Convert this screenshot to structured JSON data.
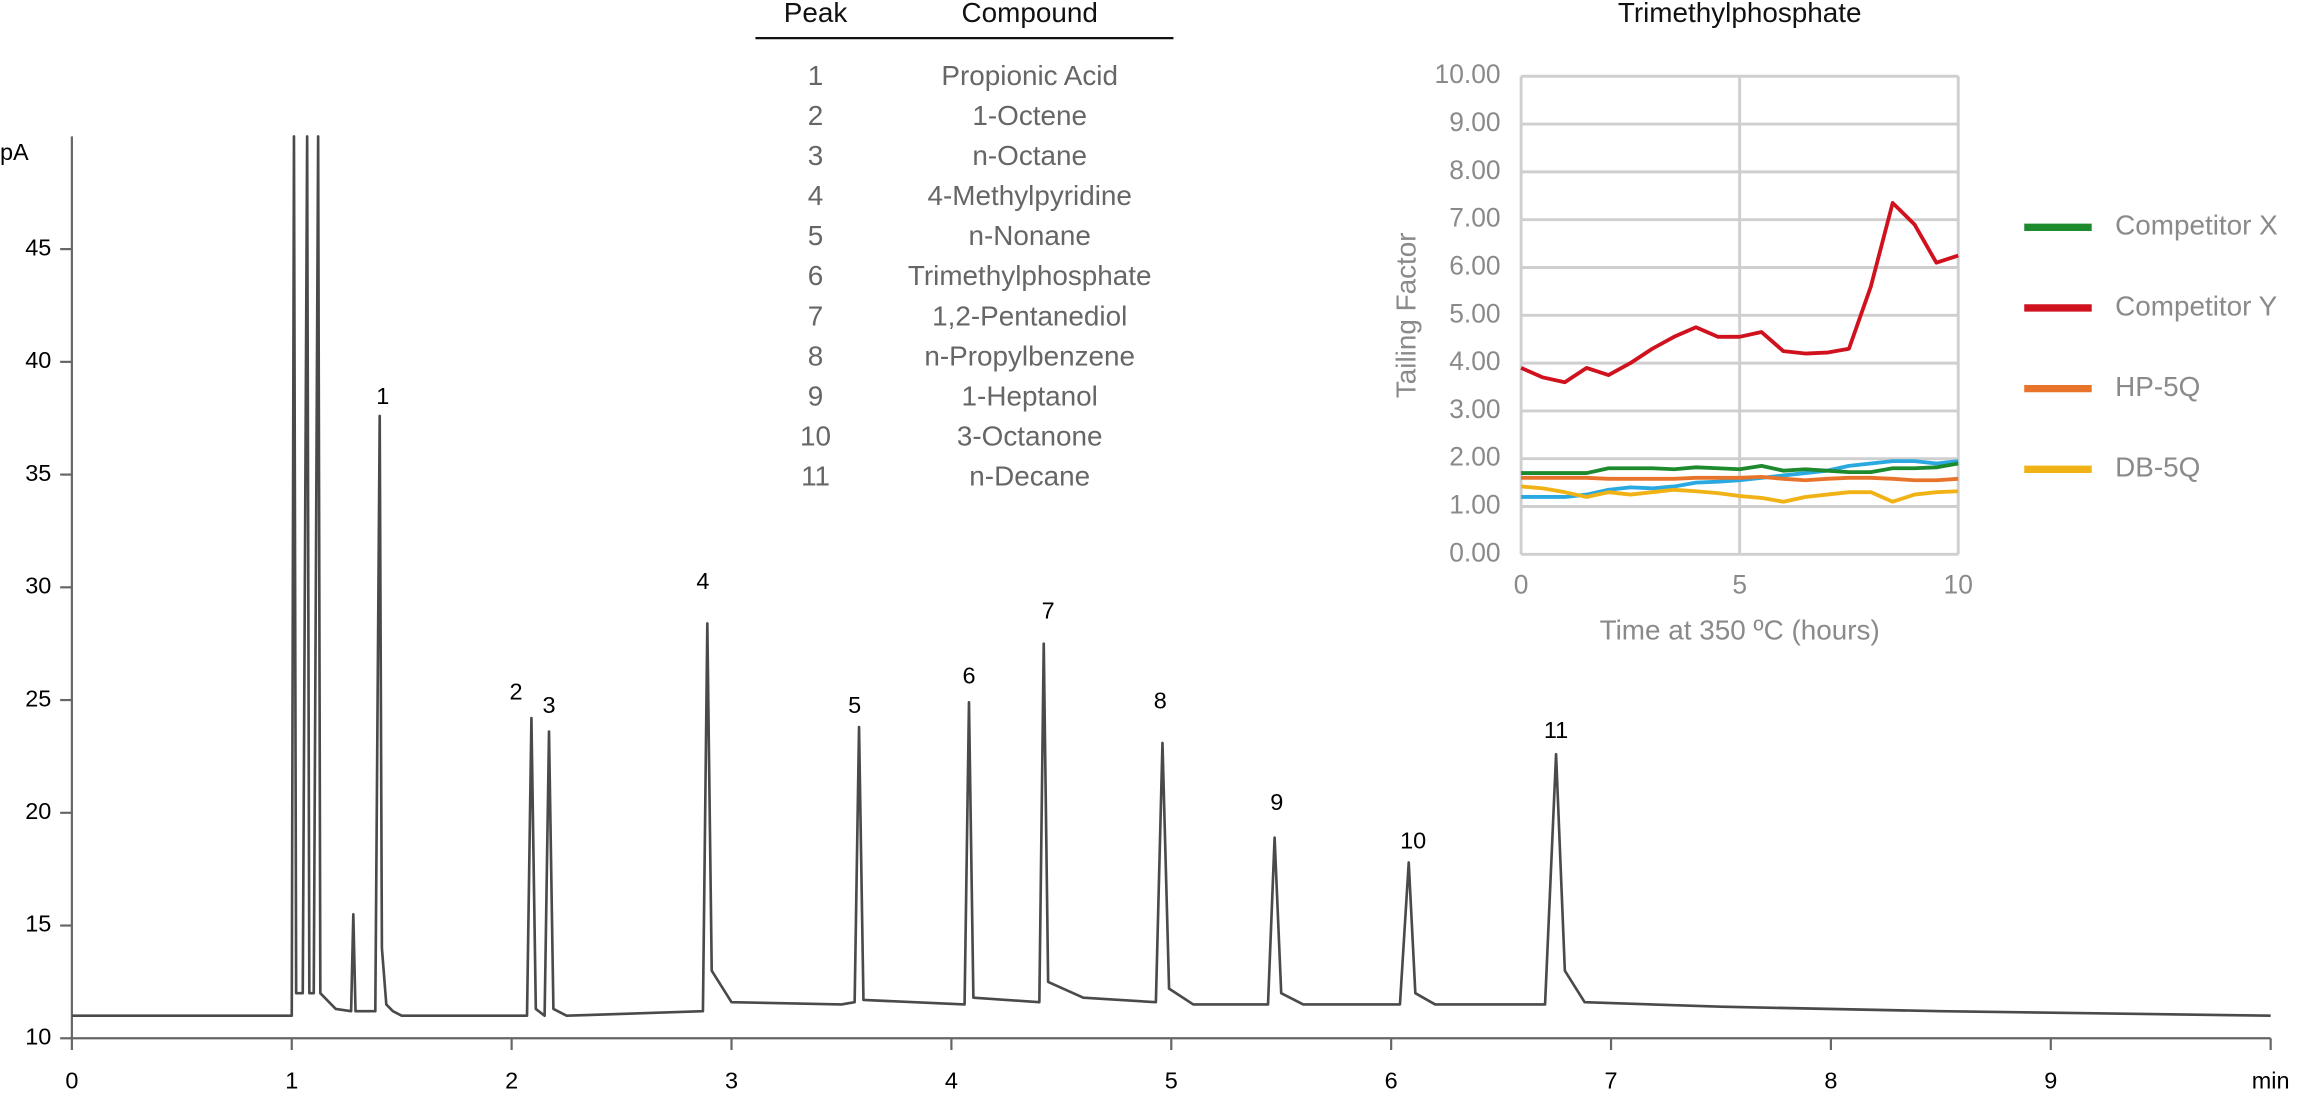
{
  "chart_data": [
    {
      "type": "line",
      "ylabel": "pA",
      "x": [
        0,
        0.5,
        1.0,
        1.01,
        1.02,
        1.05,
        1.07,
        1.08,
        1.1,
        1.12,
        1.13,
        1.15,
        1.2,
        1.27,
        1.28,
        1.29,
        1.38,
        1.4,
        1.41,
        1.43,
        1.46,
        1.5,
        2.07,
        2.09,
        2.11,
        2.15,
        2.17,
        2.19,
        2.25,
        2.87,
        2.89,
        2.91,
        3.0,
        3.5,
        3.56,
        3.58,
        3.6,
        4.06,
        4.08,
        4.1,
        4.4,
        4.42,
        4.44,
        4.6,
        4.93,
        4.96,
        4.99,
        5.1,
        5.44,
        5.47,
        5.5,
        5.6,
        6.04,
        6.08,
        6.11,
        6.2,
        6.7,
        6.75,
        6.79,
        6.88,
        7.5,
        8.5,
        10
      ],
      "series": [
        {
          "color": "#4a4a4a",
          "values": [
            11.0,
            11.0,
            11.0,
            50,
            12,
            12,
            50,
            12,
            12,
            50,
            12,
            11.8,
            11.3,
            11.2,
            15.5,
            11.2,
            11.2,
            37.6,
            14,
            11.5,
            11.2,
            11.0,
            11.0,
            24.2,
            11.3,
            11.0,
            23.6,
            11.3,
            11.0,
            11.2,
            28.4,
            13,
            11.6,
            11.5,
            11.6,
            23.8,
            11.7,
            11.5,
            24.9,
            11.8,
            11.6,
            27.5,
            12.5,
            11.8,
            11.6,
            23.1,
            12.2,
            11.5,
            11.5,
            18.9,
            12.0,
            11.5,
            11.5,
            17.8,
            12,
            11.5,
            11.5,
            22.6,
            13,
            11.6,
            11.4,
            11.2,
            11.0
          ]
        }
      ],
      "xlim": [
        0,
        10
      ],
      "xticks": [
        0,
        1,
        2,
        3,
        4,
        5,
        6,
        7,
        8,
        9,
        {
          "value": 10,
          "label": "min"
        }
      ],
      "ylim": [
        10,
        50
      ],
      "yticks": [
        10,
        15,
        20,
        25,
        30,
        35,
        40,
        45
      ],
      "grid": false,
      "annotations": [
        {
          "text": "1",
          "x": 1.414,
          "y": 38.4
        },
        {
          "text": "2",
          "x": 2.02,
          "y": 25.3
        },
        {
          "text": "3",
          "x": 2.17,
          "y": 24.7
        },
        {
          "text": "4",
          "x": 2.87,
          "y": 30.2
        },
        {
          "text": "5",
          "x": 3.56,
          "y": 24.7
        },
        {
          "text": "6",
          "x": 4.08,
          "y": 26.0
        },
        {
          "text": "7",
          "x": 4.44,
          "y": 28.9
        },
        {
          "text": "8",
          "x": 4.95,
          "y": 24.9
        },
        {
          "text": "9",
          "x": 5.48,
          "y": 20.4
        },
        {
          "text": "10",
          "x": 6.1,
          "y": 18.7
        },
        {
          "text": "11",
          "x": 6.75,
          "y": 23.6
        }
      ]
    },
    {
      "type": "line",
      "title": "Trimethylphosphate",
      "xlabel": "Time at 350 ºC (hours)",
      "ylabel": "Tailing Factor",
      "x": [
        0,
        0.5,
        1,
        1.5,
        2,
        2.5,
        3,
        3.5,
        4,
        4.5,
        5,
        5.5,
        6,
        6.5,
        7,
        7.5,
        8,
        8.5,
        9,
        9.5,
        10
      ],
      "series": [
        {
          "name": "Competitor X",
          "color": "#1e8a2e",
          "values": [
            1.7,
            1.7,
            1.7,
            1.7,
            1.8,
            1.8,
            1.8,
            1.78,
            1.82,
            1.8,
            1.78,
            1.85,
            1.75,
            1.78,
            1.75,
            1.72,
            1.72,
            1.8,
            1.8,
            1.82,
            1.9
          ]
        },
        {
          "name": "Competitor Y",
          "color": "#d0121f",
          "values": [
            3.9,
            3.7,
            3.6,
            3.9,
            3.75,
            4.0,
            4.3,
            4.55,
            4.75,
            4.55,
            4.55,
            4.65,
            4.25,
            4.2,
            4.22,
            4.3,
            5.6,
            7.35,
            6.9,
            6.1,
            6.25
          ]
        },
        {
          "name": "HP-5Q",
          "color": "#e8732a",
          "values": [
            1.6,
            1.6,
            1.6,
            1.6,
            1.58,
            1.58,
            1.58,
            1.58,
            1.6,
            1.6,
            1.6,
            1.62,
            1.58,
            1.55,
            1.58,
            1.6,
            1.6,
            1.58,
            1.55,
            1.55,
            1.58
          ]
        },
        {
          "name": "DB-5Q",
          "color": "#f0b215",
          "values": [
            1.42,
            1.38,
            1.3,
            1.2,
            1.3,
            1.25,
            1.3,
            1.35,
            1.32,
            1.28,
            1.22,
            1.18,
            1.1,
            1.2,
            1.25,
            1.3,
            1.3,
            1.1,
            1.25,
            1.3,
            1.32
          ]
        },
        {
          "color": "#29a9e0",
          "values": [
            1.2,
            1.2,
            1.2,
            1.25,
            1.35,
            1.4,
            1.38,
            1.42,
            1.5,
            1.52,
            1.55,
            1.6,
            1.65,
            1.7,
            1.75,
            1.85,
            1.9,
            1.95,
            1.95,
            1.9,
            1.95
          ]
        }
      ],
      "xlim": [
        0,
        10
      ],
      "xticks": [
        0,
        5,
        10
      ],
      "ylim": [
        0,
        10
      ],
      "yticks": [
        {
          "value": 0,
          "label": "0.00"
        },
        {
          "value": 1,
          "label": "1.00"
        },
        {
          "value": 2,
          "label": "2.00"
        },
        {
          "value": 3,
          "label": "3.00"
        },
        {
          "value": 4,
          "label": "4.00"
        },
        {
          "value": 5,
          "label": "5.00"
        },
        {
          "value": 6,
          "label": "6.00"
        },
        {
          "value": 7,
          "label": "7.00"
        },
        {
          "value": 8,
          "label": "8.00"
        },
        {
          "value": 9,
          "label": "9.00"
        },
        {
          "value": 10,
          "label": "10.00"
        }
      ],
      "grid": true,
      "legend": "right"
    }
  ],
  "table": {
    "header": [
      "Peak",
      "Compound"
    ],
    "rows": [
      [
        "1",
        "Propionic Acid"
      ],
      [
        "2",
        "1-Octene"
      ],
      [
        "3",
        "n-Octane"
      ],
      [
        "4",
        "4-Methylpyridine"
      ],
      [
        "5",
        "n-Nonane"
      ],
      [
        "6",
        "Trimethylphosphate"
      ],
      [
        "7",
        "1,2-Pentanediol"
      ],
      [
        "8",
        "n-Propylbenzene"
      ],
      [
        "9",
        "1-Heptanol"
      ],
      [
        "10",
        "3-Octanone"
      ],
      [
        "11",
        "n-Decane"
      ]
    ]
  }
}
